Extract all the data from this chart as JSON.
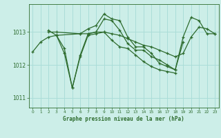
{
  "bg_color": "#cceee8",
  "grid_color": "#aaddd8",
  "line_color": "#2d6b2d",
  "title": "Graphe pression niveau de la mer (hPa)",
  "xlim": [
    -0.5,
    23.5
  ],
  "ylim": [
    1010.7,
    1013.85
  ],
  "yticks": [
    1011,
    1012,
    1013
  ],
  "xticks": [
    0,
    1,
    2,
    3,
    4,
    5,
    6,
    7,
    8,
    9,
    10,
    11,
    12,
    13,
    14,
    15,
    16,
    17,
    18,
    19,
    20,
    21,
    22,
    23
  ],
  "series": [
    {
      "x": [
        0,
        1,
        2,
        3,
        4,
        5,
        6,
        7,
        8,
        9,
        10,
        11,
        12,
        13,
        14,
        15,
        16,
        17,
        18,
        19,
        20,
        21,
        22,
        23
      ],
      "y": [
        1012.4,
        1012.7,
        1012.85,
        1012.9,
        1012.5,
        1011.3,
        1012.3,
        1012.95,
        1013.0,
        1013.4,
        1013.35,
        1013.05,
        1012.65,
        1012.45,
        1012.45,
        1012.25,
        1012.15,
        1012.0,
        1011.85,
        1012.85,
        1013.45,
        1013.35,
        1012.95,
        1012.95
      ]
    },
    {
      "x": [
        2,
        3,
        6,
        7,
        8,
        9,
        10,
        11,
        12,
        13,
        14,
        15,
        16,
        17,
        18,
        19
      ],
      "y": [
        1013.0,
        1013.0,
        1012.95,
        1013.1,
        1013.2,
        1013.55,
        1013.4,
        1013.35,
        1012.85,
        1012.55,
        1012.55,
        1012.35,
        1012.05,
        1011.95,
        1011.85,
        1012.7
      ]
    },
    {
      "x": [
        2,
        3,
        6,
        7,
        8,
        9,
        10,
        11,
        12,
        13,
        14,
        15,
        16,
        17,
        18,
        19,
        20,
        21,
        22,
        23
      ],
      "y": [
        1013.05,
        1012.9,
        1012.95,
        1012.95,
        1013.0,
        1013.0,
        1012.95,
        1012.9,
        1012.8,
        1012.7,
        1012.6,
        1012.55,
        1012.45,
        1012.35,
        1012.25,
        1012.35,
        1012.85,
        1013.15,
        1013.1,
        1012.95
      ]
    },
    {
      "x": [
        3,
        4,
        5,
        6,
        7,
        8,
        9,
        10,
        11,
        12,
        13,
        14,
        15,
        16,
        17,
        18
      ],
      "y": [
        1012.9,
        1012.35,
        1011.3,
        1012.25,
        1012.9,
        1012.95,
        1013.0,
        1012.75,
        1012.55,
        1012.5,
        1012.3,
        1012.1,
        1011.95,
        1011.85,
        1011.8,
        1011.75
      ]
    }
  ]
}
